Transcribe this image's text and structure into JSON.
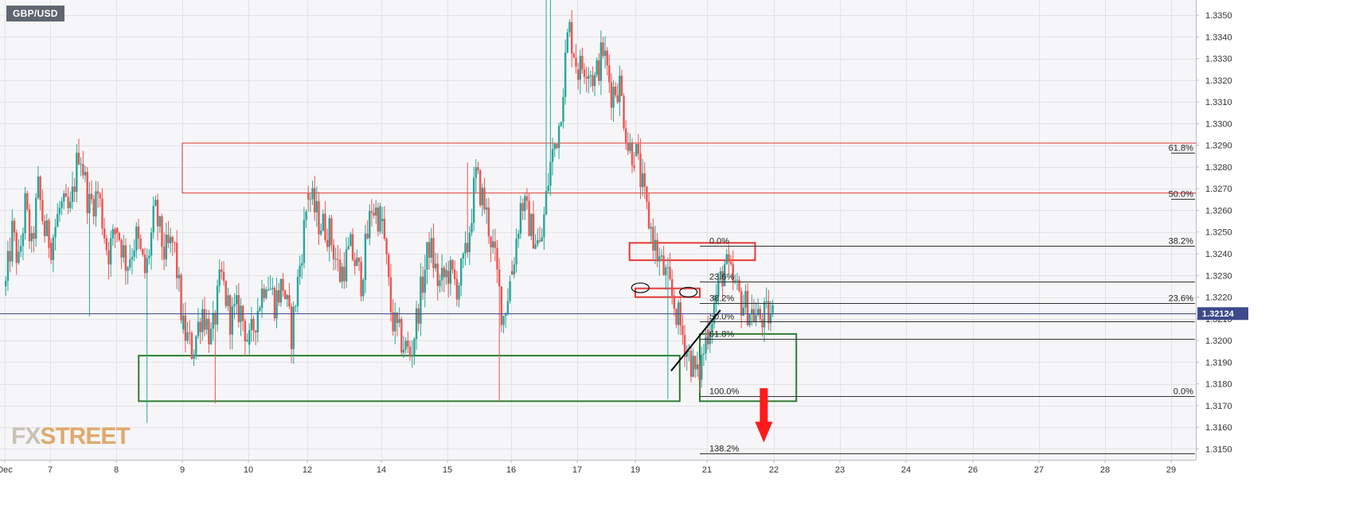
{
  "symbol": "GBP/USD",
  "watermark": {
    "part1": "FX",
    "part2": "STREET"
  },
  "price_label": "1.32124",
  "chart_data": {
    "type": "candlestick",
    "title": "GBP/USD",
    "ylim": [
      1.3145,
      1.3357
    ],
    "y_ticks": [
      "1.3150",
      "1.3160",
      "1.3170",
      "1.3180",
      "1.3190",
      "1.3200",
      "1.3210",
      "1.3220",
      "1.3230",
      "1.3240",
      "1.3250",
      "1.3260",
      "1.3270",
      "1.3280",
      "1.3290",
      "1.3300",
      "1.3310",
      "1.3320",
      "1.3330",
      "1.3340",
      "1.3350"
    ],
    "x_ticks": [
      "Dec",
      "7",
      "8",
      "9",
      "10",
      "12",
      "14",
      "15",
      "16",
      "17",
      "19",
      "21",
      "22",
      "23",
      "24",
      "26",
      "27",
      "28",
      "29"
    ],
    "current_price": 1.32124,
    "series": [
      {
        "day": "Dec",
        "path": [
          1.3225,
          1.325,
          1.3235,
          1.3262,
          1.3242,
          1.327,
          1.325,
          1.3245
        ]
      },
      {
        "day": "7",
        "path": [
          1.3245,
          1.3262,
          1.3258,
          1.329,
          1.3262,
          1.3268,
          1.324,
          1.3252
        ]
      },
      {
        "day": "8",
        "path": [
          1.3252,
          1.3235,
          1.3248,
          1.323,
          1.326,
          1.324,
          1.3245,
          1.3205
        ]
      },
      {
        "day": "9",
        "path": [
          1.3205,
          1.3195,
          1.3215,
          1.32,
          1.323,
          1.321,
          1.3215,
          1.3198
        ]
      },
      {
        "day": "10",
        "path": [
          1.3198,
          1.3215,
          1.323,
          1.3218,
          1.3226,
          1.3203,
          1.3235,
          1.3268
        ]
      },
      {
        "day": "12",
        "path": [
          1.3268,
          1.3255,
          1.325,
          1.323,
          1.3242,
          1.3228,
          1.3262,
          1.3255
        ]
      },
      {
        "day": "14",
        "path": [
          1.3255,
          1.321,
          1.32,
          1.3193,
          1.322,
          1.3245,
          1.3225,
          1.3232
        ]
      },
      {
        "day": "15",
        "path": [
          1.3232,
          1.3225,
          1.324,
          1.3276,
          1.3262,
          1.324,
          1.321,
          1.3232
        ]
      },
      {
        "day": "16",
        "path": [
          1.3232,
          1.3265,
          1.3252,
          1.3242,
          1.328,
          1.33,
          1.3345,
          1.3325
        ]
      },
      {
        "day": "17",
        "path": [
          1.3325,
          1.3328,
          1.332,
          1.3334,
          1.3315,
          1.3318,
          1.329,
          1.3285
        ]
      },
      {
        "day": "19",
        "path": [
          1.3285,
          1.326,
          1.324,
          1.3228,
          1.3212,
          1.3195,
          1.3182,
          1.3205
        ]
      },
      {
        "day": "21",
        "path": [
          1.3205,
          1.3235,
          1.3218,
          1.321,
          1.3212
        ]
      }
    ],
    "zones": [
      {
        "name": "upper-resistance-zone",
        "color": "#e53935",
        "day0": "9",
        "frac0": 0.0,
        "day1": "29",
        "frac1": 0.45,
        "high": 1.3291,
        "low": 1.3268
      },
      {
        "name": "support-zone",
        "color": "#2e7d32",
        "day0": "8",
        "frac0": 0.34,
        "day1": "19",
        "frac1": 0.62,
        "high": 1.3193,
        "low": 1.3172
      },
      {
        "name": "target-zone",
        "color": "#2e7d32",
        "day0": "21",
        "frac0": -0.1,
        "day1": "22",
        "frac1": 0.34,
        "high": 1.3203,
        "low": 1.3172
      },
      {
        "name": "recent-resistance-box",
        "color": "#e53935",
        "day0": "19",
        "frac0": -0.1,
        "day1": "22",
        "frac1": -0.28,
        "high": 1.3245,
        "low": 1.3237
      },
      {
        "name": "neckline-box",
        "color": "#e53935",
        "day0": "19",
        "frac0": 0.0,
        "day1": "21",
        "frac1": -0.1,
        "high": 1.3224,
        "low": 1.322
      }
    ],
    "fib_short": {
      "day0": "21",
      "frac0": -0.1,
      "day1": "29",
      "frac1": 0.36,
      "levels": [
        {
          "label": "0.0%",
          "price": 1.32437
        },
        {
          "label": "23.6%",
          "price": 1.32273
        },
        {
          "label": "38.2%",
          "price": 1.32172
        },
        {
          "label": "50.0%",
          "price": 1.3209
        },
        {
          "label": "61.8%",
          "price": 1.32008
        },
        {
          "label": "100.0%",
          "price": 1.31743
        },
        {
          "label": "138.2%",
          "price": 1.31479
        }
      ]
    },
    "fib_long": {
      "day0": "29",
      "frac0": 0.0,
      "day1": "29",
      "frac1": 0.36,
      "levels": [
        {
          "label": "0.0%",
          "price": 1.31743
        },
        {
          "label": "23.6%",
          "price": 1.32172
        },
        {
          "label": "38.2%",
          "price": 1.32438
        },
        {
          "label": "50.0%",
          "price": 1.32652
        },
        {
          "label": "61.8%",
          "price": 1.32866
        }
      ]
    },
    "trendline": {
      "day0": "19",
      "frac0": 0.5,
      "price0": 1.3186,
      "day1": "21",
      "frac1": 0.2,
      "price1": 1.3214
    },
    "arrow": {
      "day": "21",
      "frac": 0.85,
      "price_top": 1.3178,
      "price_tip": 1.3153,
      "color": "#ff1a1a"
    },
    "ellipses": [
      {
        "day": "19",
        "frac": 0.07,
        "price": 1.32243
      },
      {
        "day": "19",
        "frac": 0.74,
        "price": 1.32223
      }
    ]
  }
}
